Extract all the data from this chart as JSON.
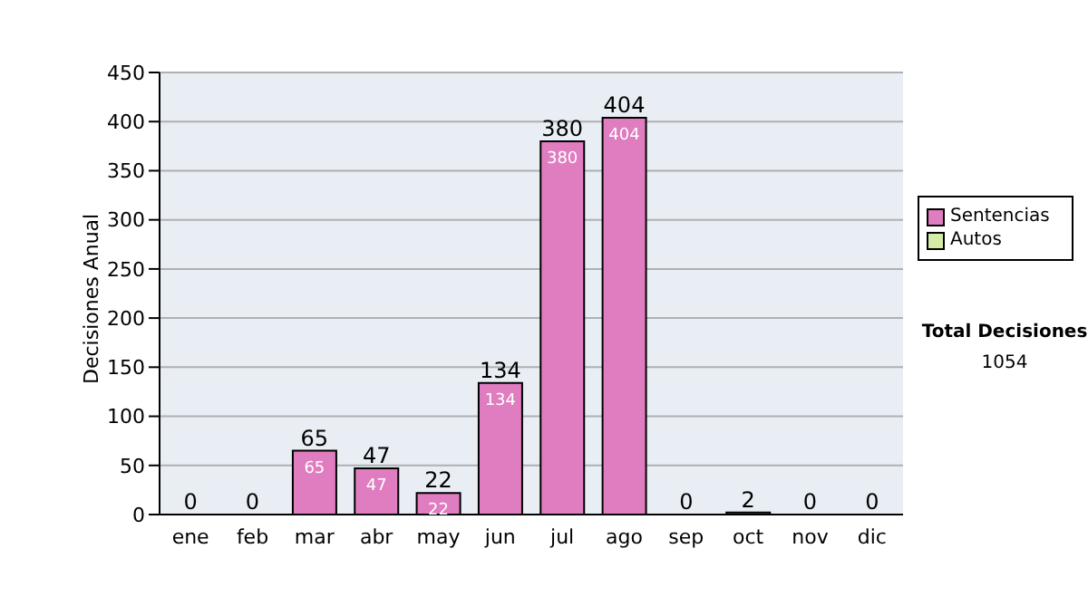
{
  "chart_data": {
    "type": "bar",
    "ylabel": "Decisiones Anual",
    "categories": [
      "ene",
      "feb",
      "mar",
      "abr",
      "may",
      "jun",
      "jul",
      "ago",
      "sep",
      "oct",
      "nov",
      "dic"
    ],
    "series": [
      {
        "name": "Sentencias",
        "color": "#e07cc0",
        "values": [
          0,
          0,
          65,
          47,
          22,
          134,
          380,
          404,
          0,
          2,
          0,
          0
        ],
        "value_labels": [
          null,
          null,
          "65",
          "47",
          "22",
          "134",
          "380",
          "404",
          null,
          null,
          null,
          null
        ]
      },
      {
        "name": "Autos",
        "color": "#d6eba6",
        "values": [
          0,
          0,
          0,
          0,
          0,
          0,
          0,
          0,
          0,
          0,
          0,
          0
        ]
      }
    ],
    "stacked": true,
    "totals": [
      "0",
      "0",
      "65",
      "47",
      "22",
      "134",
      "380",
      "404",
      "0",
      "2",
      "0",
      "0"
    ],
    "ylim": [
      0,
      450
    ],
    "yticks": [
      0,
      50,
      100,
      150,
      200,
      250,
      300,
      350,
      400,
      450
    ],
    "grid": "y",
    "legend": "right",
    "annotations": [
      "Total Decisiones",
      "1054"
    ]
  }
}
